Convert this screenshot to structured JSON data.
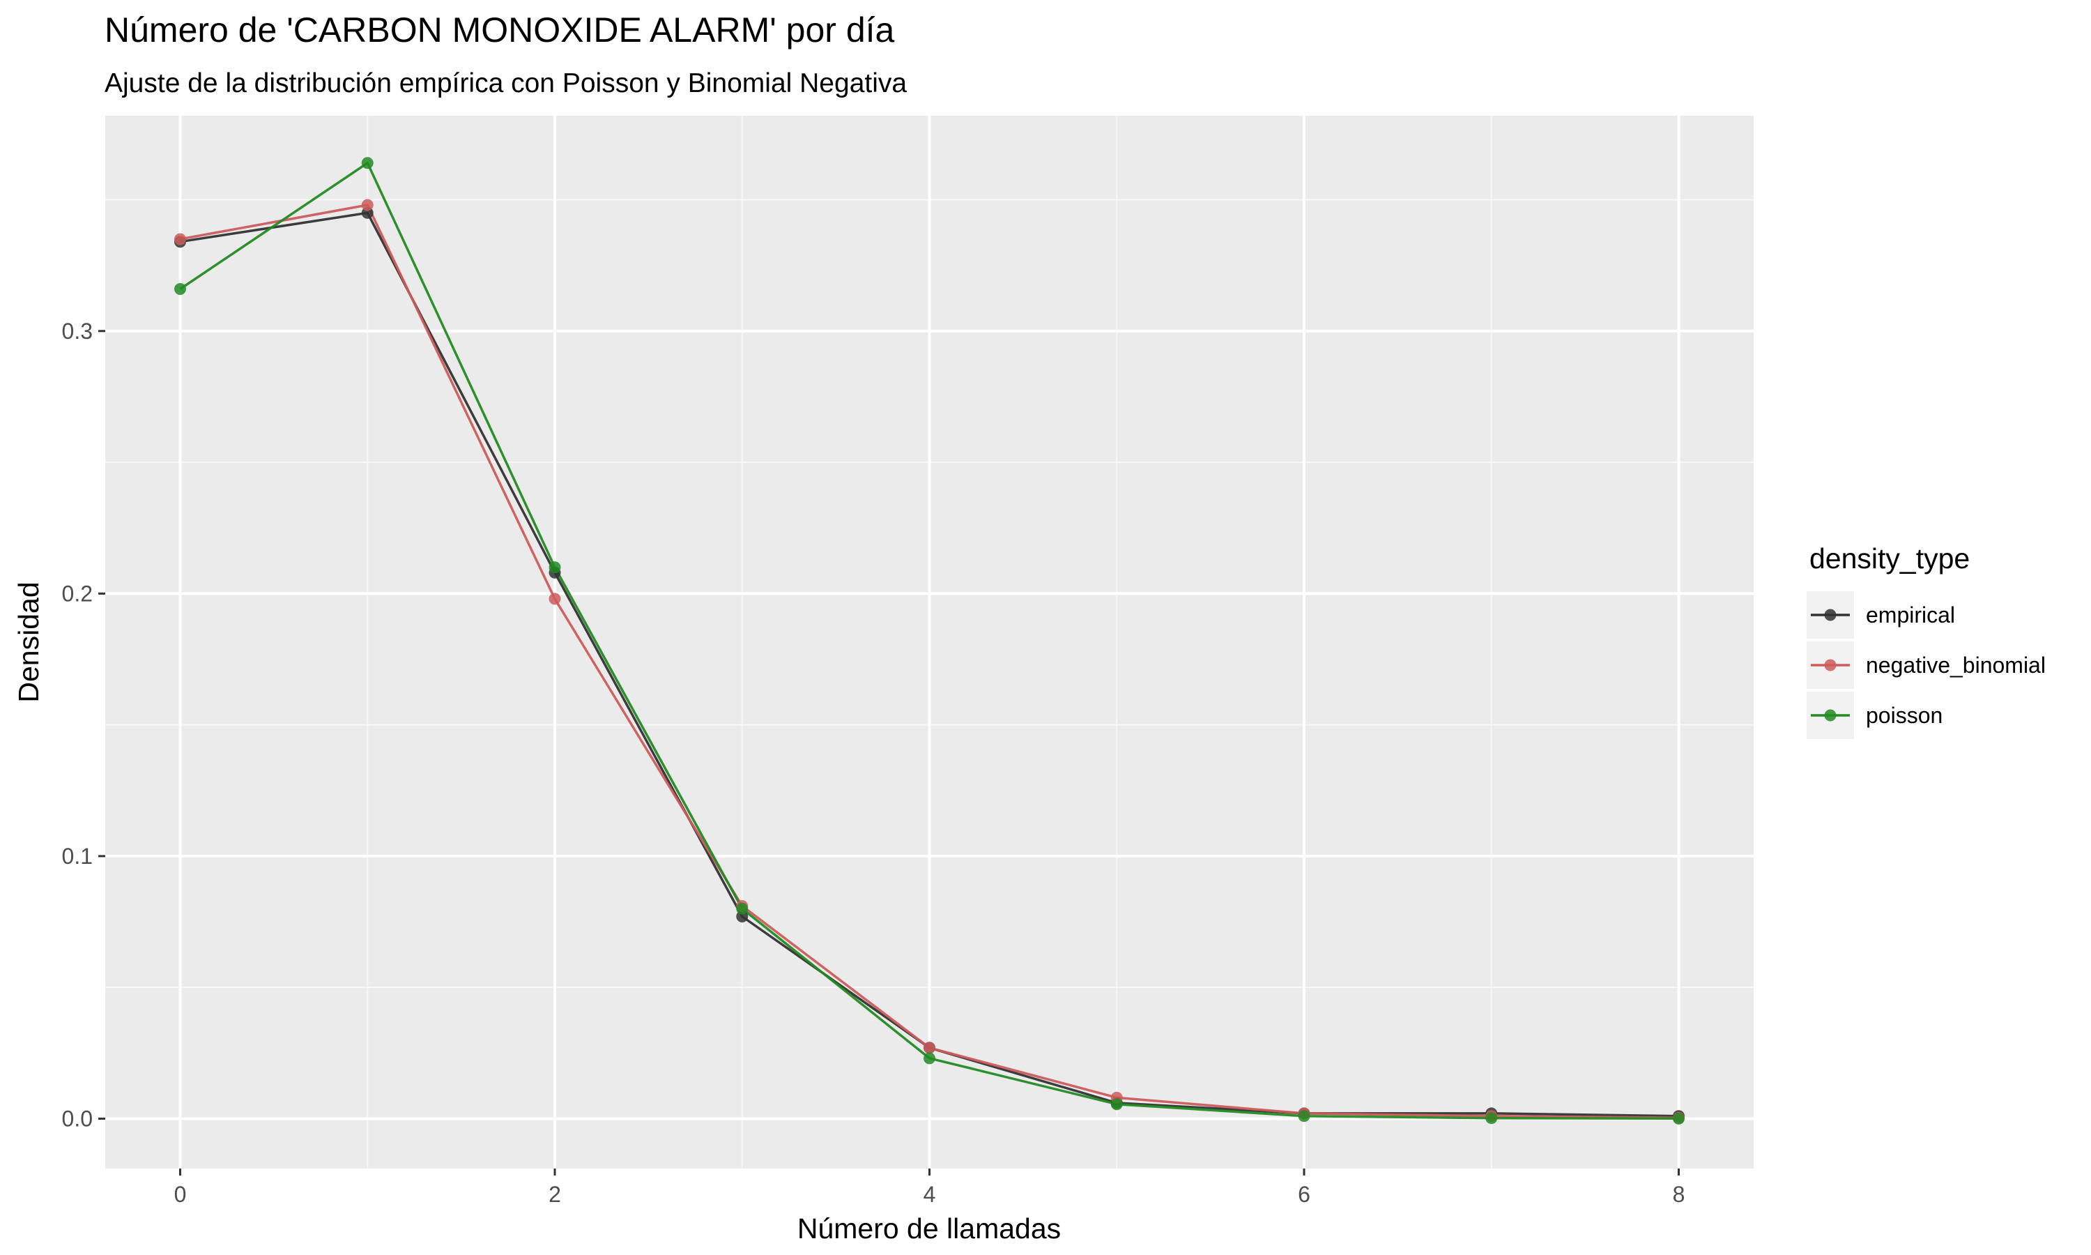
{
  "chart_data": {
    "type": "line",
    "title": "Número de 'CARBON MONOXIDE ALARM' por día",
    "subtitle": "Ajuste de la distribución empírica con Poisson y Binomial Negativa",
    "xlabel": "Número de llamadas",
    "ylabel": "Densidad",
    "xlim": [
      -0.4,
      8.4
    ],
    "ylim": [
      -0.019,
      0.382
    ],
    "x_ticks": [
      0,
      2,
      4,
      6,
      8
    ],
    "x_tick_labels": [
      "0",
      "2",
      "4",
      "6",
      "8"
    ],
    "y_ticks": [
      0.0,
      0.1,
      0.2,
      0.3
    ],
    "y_tick_labels": [
      "0.0",
      "0.1",
      "0.2",
      "0.3"
    ],
    "grid": true,
    "legend": {
      "title": "density_type",
      "placement": "right"
    },
    "x": [
      0,
      1,
      2,
      3,
      4,
      5,
      6,
      7,
      8
    ],
    "series": [
      {
        "name": "empirical",
        "color": "#333333",
        "values": [
          0.334,
          0.345,
          0.208,
          0.077,
          0.027,
          0.006,
          0.002,
          0.002,
          0.001
        ]
      },
      {
        "name": "negative_binomial",
        "color": "#cd5c5c",
        "values": [
          0.335,
          0.348,
          0.198,
          0.081,
          0.027,
          0.008,
          0.002,
          0.001,
          0.0003
        ]
      },
      {
        "name": "poisson",
        "color": "#228b22",
        "values": [
          0.316,
          0.364,
          0.21,
          0.08,
          0.023,
          0.0055,
          0.001,
          0.0002,
          3e-05
        ]
      }
    ]
  }
}
